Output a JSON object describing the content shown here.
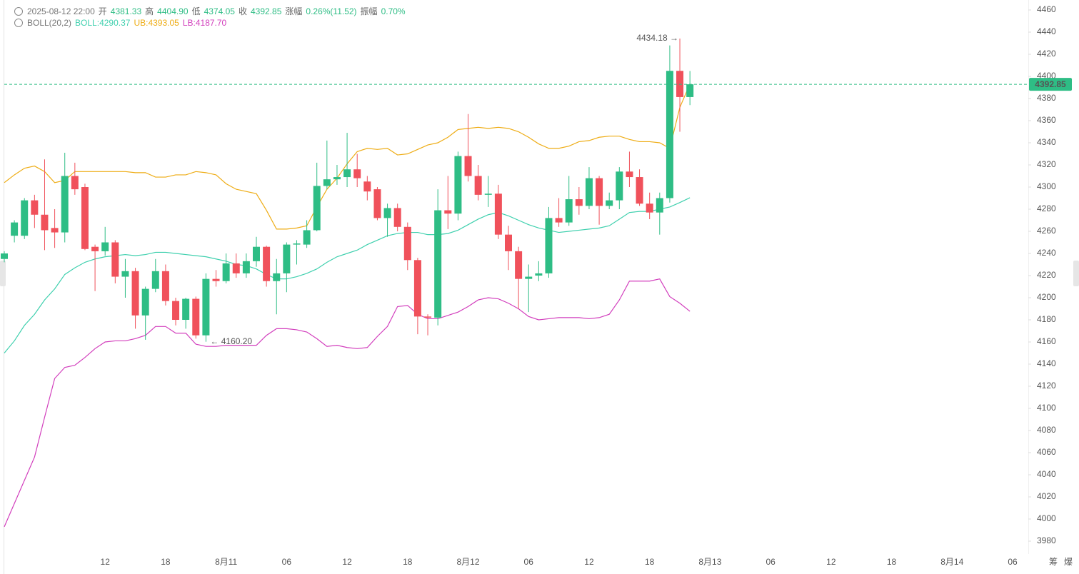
{
  "chart_data": {
    "type": "candlestick",
    "ohlc_header": {
      "time": "2025-08-12 22:00",
      "items": [
        {
          "label": "开",
          "value": "4381.33"
        },
        {
          "label": "高",
          "value": "4404.90"
        },
        {
          "label": "低",
          "value": "4374.05"
        },
        {
          "label": "收",
          "value": "4392.85"
        },
        {
          "label": "涨幅",
          "value": "0.26%(11.52)"
        },
        {
          "label": "振幅",
          "value": "0.70%"
        }
      ]
    },
    "indicator": {
      "name": "BOLL(20,2)",
      "items": [
        "BOLL:4290.37",
        "UB:4393.05",
        "LB:4187.70"
      ]
    },
    "up_color": "#2ebd85",
    "down_color": "#f0515b",
    "categories": [
      null,
      null,
      null,
      null,
      null,
      null,
      null,
      null,
      null,
      null,
      "12",
      null,
      null,
      null,
      null,
      null,
      "18",
      null,
      null,
      null,
      null,
      null,
      "8月11",
      null,
      null,
      null,
      null,
      null,
      "06",
      null,
      null,
      null,
      null,
      null,
      "12",
      null,
      null,
      null,
      null,
      null,
      "18",
      null,
      null,
      null,
      null,
      null,
      "8月12",
      null,
      null,
      null,
      null,
      null,
      "06",
      null,
      null,
      null,
      null,
      null,
      "12",
      null,
      null,
      null,
      null,
      null,
      "18",
      null,
      null,
      null,
      null,
      null,
      "8月13",
      null,
      null,
      null,
      null,
      null,
      "06",
      null,
      null,
      null,
      null,
      null,
      "12",
      null,
      null,
      null,
      null,
      null,
      "18",
      null,
      null,
      null,
      null,
      null,
      "8月14",
      null,
      null,
      null,
      null,
      null,
      "06",
      null
    ],
    "open": [
      4235,
      4256,
      4256,
      4288,
      4275,
      4263,
      4259,
      4310,
      4300,
      4246,
      4242,
      4250,
      4219,
      4224,
      4184,
      4208,
      4224,
      4197,
      4180,
      4199,
      4166,
      4217,
      4215,
      4231,
      4222,
      4233,
      4246,
      4215,
      4222,
      4248,
      4248,
      4261,
      4301,
      4307,
      4309,
      4316,
      4305,
      4298,
      4272,
      4281,
      4264,
      4234,
      4183,
      4182,
      4279,
      4276,
      4328,
      4310,
      4293,
      4294,
      4257,
      4242,
      4217,
      4220,
      4222,
      4272,
      4268,
      4289,
      4283,
      4308,
      4283,
      4288,
      4314,
      4309,
      4285,
      4277,
      4290,
      4405,
      4381.33,
      null,
      null,
      null,
      null,
      null,
      null,
      null,
      null,
      null,
      null,
      null,
      null,
      null,
      null,
      null,
      null,
      null,
      null,
      null,
      null,
      null,
      null,
      null,
      null,
      null,
      null,
      null,
      null,
      null,
      null,
      null,
      null,
      null
    ],
    "high": [
      4242,
      4270,
      4290,
      4293,
      4325,
      4280,
      4331,
      4322,
      4303,
      4248,
      4264,
      4252,
      4235,
      4227,
      4210,
      4235,
      4230,
      4200,
      4200,
      4201,
      4222,
      4225,
      4240,
      4240,
      4240,
      4255,
      4247,
      4235,
      4250,
      4252,
      4270,
      4322,
      4342,
      4320,
      4349,
      4330,
      4310,
      4300,
      4285,
      4285,
      4268,
      4236,
      4185,
      4298,
      4310,
      4332,
      4366,
      4320,
      4310,
      4302,
      4265,
      4246,
      4230,
      4233,
      4282,
      4290,
      4310,
      4300,
      4318,
      4310,
      4295,
      4318,
      4332,
      4316,
      4295,
      4295,
      4428,
      4434.18,
      4404.9,
      null,
      null,
      null,
      null,
      null,
      null,
      null,
      null,
      null,
      null,
      null,
      null,
      null,
      null,
      null,
      null,
      null,
      null,
      null,
      null,
      null,
      null,
      null,
      null,
      null,
      null,
      null,
      null,
      null,
      null,
      null,
      null,
      null
    ],
    "low": [
      4232,
      4250,
      4253,
      4263,
      4243,
      4245,
      4250,
      4293,
      4243,
      4206,
      4238,
      4213,
      4200,
      4172,
      4162,
      4205,
      4193,
      4175,
      4172,
      4163,
      4160.2,
      4210,
      4213,
      4218,
      4218,
      4228,
      4210,
      4185,
      4205,
      4230,
      4245,
      4260,
      4298,
      4302,
      4300,
      4300,
      4288,
      4270,
      4255,
      4260,
      4225,
      4167,
      4166,
      4175,
      4262,
      4270,
      4305,
      4288,
      4282,
      4253,
      4225,
      4190,
      4187,
      4215,
      4218,
      4264,
      4265,
      4275,
      4280,
      4266,
      4280,
      4280,
      4300,
      4283,
      4271,
      4257,
      4286,
      4350,
      4374.05,
      null,
      null,
      null,
      null,
      null,
      null,
      null,
      null,
      null,
      null,
      null,
      null,
      null,
      null,
      null,
      null,
      null,
      null,
      null,
      null,
      null,
      null,
      null,
      null,
      null,
      null,
      null,
      null,
      null,
      null,
      null,
      null,
      null
    ],
    "close": [
      4240,
      4268,
      4288,
      4275,
      4261,
      4259,
      4310,
      4298,
      4244,
      4242,
      4250,
      4219,
      4224,
      4184,
      4208,
      4224,
      4197,
      4180,
      4199,
      4166,
      4217,
      4215,
      4231,
      4222,
      4233,
      4246,
      4215,
      4222,
      4248,
      4249,
      4261,
      4301,
      4307,
      4309,
      4316,
      4308,
      4296,
      4272,
      4281,
      4264,
      4234,
      4183,
      4182,
      4279,
      4276,
      4328,
      4310,
      4293,
      4294,
      4257,
      4242,
      4217,
      4219,
      4222,
      4272,
      4268,
      4289,
      4283,
      4308,
      4283,
      4288,
      4314,
      4309,
      4285,
      4277,
      4290,
      4405,
      4381.33,
      4392.85,
      null,
      null,
      null,
      null,
      null,
      null,
      null,
      null,
      null,
      null,
      null,
      null,
      null,
      null,
      null,
      null,
      null,
      null,
      null,
      null,
      null,
      null,
      null,
      null,
      null,
      null,
      null,
      null,
      null,
      null,
      null,
      null,
      null
    ],
    "bands": [
      {
        "color": "#3fd0ae",
        "values": [
          4150,
          4161,
          4175,
          4185,
          4198,
          4208,
          4221,
          4227,
          4232,
          4235,
          4237,
          4238,
          4239,
          4238,
          4239,
          4241,
          4241,
          4240,
          4239,
          4238,
          4237,
          4235,
          4233,
          4230,
          4229,
          4226,
          4221,
          4217,
          4217,
          4219,
          4222,
          4226,
          4232,
          4237,
          4240,
          4243,
          4248,
          4252,
          4256,
          4258,
          4259,
          4259,
          4257,
          4257,
          4258,
          4261,
          4266,
          4271,
          4275,
          4277,
          4274,
          4270,
          4266,
          4263,
          4261,
          4259,
          4260,
          4261,
          4262,
          4263,
          4265,
          4271,
          4277,
          4278,
          4278,
          4280,
          4282,
          4286,
          4290.37,
          null,
          null,
          null,
          null,
          null,
          null,
          null,
          null,
          null,
          null,
          null,
          null,
          null,
          null,
          null,
          null,
          null,
          null,
          null,
          null,
          null,
          null,
          null,
          null,
          null,
          null,
          null,
          null,
          null,
          null,
          null,
          null,
          null
        ]
      },
      {
        "color": "#eeac14",
        "values": [
          4304,
          4311,
          4317,
          4319,
          4314,
          4304,
          4306,
          4314,
          4314,
          4314,
          4314,
          4314,
          4314,
          4313,
          4313,
          4309,
          4309,
          4311,
          4311,
          4314,
          4313,
          4311,
          4303,
          4298,
          4296,
          4294,
          4279,
          4262,
          4262,
          4263,
          4265,
          4282,
          4298,
          4308,
          4321,
          4332,
          4335,
          4334,
          4335,
          4329,
          4330,
          4334,
          4338,
          4340,
          4345,
          4352,
          4353,
          4354,
          4353,
          4354,
          4353,
          4350,
          4345,
          4339,
          4335,
          4335,
          4337,
          4341,
          4342,
          4345,
          4346,
          4346,
          4343,
          4341,
          4341,
          4340,
          4335,
          4372,
          4393.05,
          null,
          null,
          null,
          null,
          null,
          null,
          null,
          null,
          null,
          null,
          null,
          null,
          null,
          null,
          null,
          null,
          null,
          null,
          null,
          null,
          null,
          null,
          null,
          null,
          null,
          null,
          null,
          null,
          null,
          null,
          null,
          null,
          null
        ]
      },
      {
        "color": "#d23fbd",
        "values": [
          3993,
          4014,
          4035,
          4056,
          4092,
          4127,
          4137,
          4139,
          4146,
          4154,
          4160,
          4161,
          4161,
          4163,
          4166,
          4174,
          4174,
          4168,
          4168,
          4158,
          4156,
          4156,
          4157,
          4157,
          4157,
          4157,
          4166,
          4172,
          4172,
          4171,
          4169,
          4163,
          4156,
          4157,
          4155,
          4154,
          4155,
          4165,
          4174,
          4192,
          4193,
          4185,
          4181,
          4181,
          4184,
          4187,
          4192,
          4198,
          4200,
          4199,
          4195,
          4190,
          4183,
          4180,
          4181,
          4182,
          4182,
          4182,
          4181,
          4182,
          4185,
          4198,
          4215,
          4215,
          4215,
          4217,
          4201,
          4195,
          4187.7,
          null,
          null,
          null,
          null,
          null,
          null,
          null,
          null,
          null,
          null,
          null,
          null,
          null,
          null,
          null,
          null,
          null,
          null,
          null,
          null,
          null,
          null,
          null,
          null,
          null,
          null,
          null,
          null,
          null,
          null,
          null,
          null,
          null
        ]
      }
    ],
    "max_label": "4434.18 →",
    "min_label": "← 4160.20",
    "last_line_color": "#2ebd85",
    "ylim": [
      3980,
      4460
    ],
    "yticks": [
      3980,
      4000,
      4020,
      4040,
      4060,
      4080,
      4100,
      4120,
      4140,
      4160,
      4180,
      4200,
      4220,
      4240,
      4260,
      4280,
      4300,
      4320,
      4340,
      4360,
      4380,
      4400,
      4420,
      4440,
      4460
    ],
    "toolbar": [
      "筹",
      "爆"
    ]
  }
}
